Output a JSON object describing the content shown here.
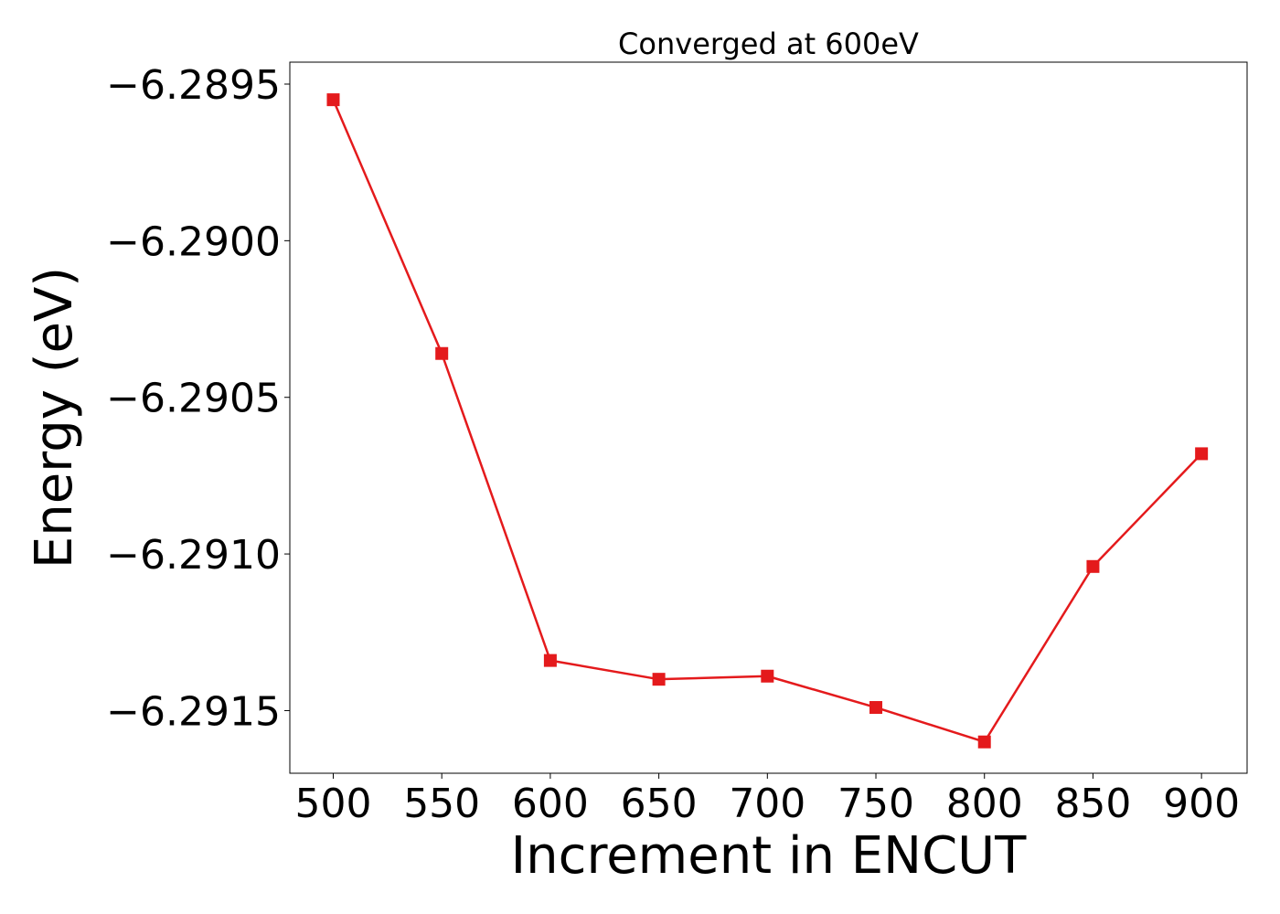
{
  "chart_data": {
    "type": "line",
    "title": "Converged at 600eV",
    "xlabel": "Increment in ENCUT",
    "ylabel": "Energy (eV)",
    "x": [
      500,
      550,
      600,
      650,
      700,
      750,
      800,
      850,
      900
    ],
    "series": [
      {
        "values": [
          -6.28955,
          -6.29036,
          -6.29134,
          -6.2914,
          -6.29139,
          -6.29149,
          -6.2916,
          -6.29104,
          -6.29068
        ],
        "color": "#e41a1c",
        "marker": "square"
      }
    ],
    "xticks": [
      500,
      550,
      600,
      650,
      700,
      750,
      800,
      850,
      900
    ],
    "xtick_labels": [
      "500",
      "550",
      "600",
      "650",
      "700",
      "750",
      "800",
      "850",
      "900"
    ],
    "yticks": [
      -6.2895,
      -6.29,
      -6.2905,
      -6.291,
      -6.2915
    ],
    "ytick_labels": [
      "−6.2895",
      "−6.2900",
      "−6.2905",
      "−6.2910",
      "−6.2915"
    ],
    "xlim": [
      480,
      921
    ],
    "ylim": [
      -6.2917,
      -6.28943
    ],
    "grid": false,
    "legend": "none"
  }
}
